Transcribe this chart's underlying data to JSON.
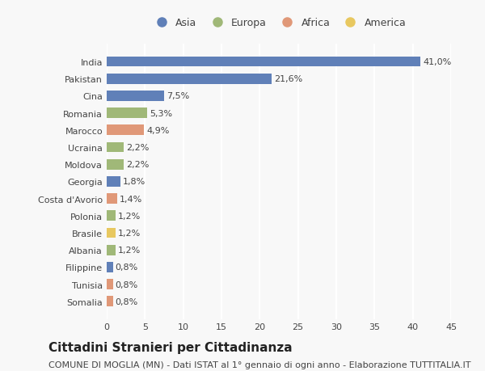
{
  "categories": [
    "India",
    "Pakistan",
    "Cina",
    "Romania",
    "Marocco",
    "Ucraina",
    "Moldova",
    "Georgia",
    "Costa d'Avorio",
    "Polonia",
    "Brasile",
    "Albania",
    "Filippine",
    "Tunisia",
    "Somalia"
  ],
  "values": [
    41.0,
    21.6,
    7.5,
    5.3,
    4.9,
    2.2,
    2.2,
    1.8,
    1.4,
    1.2,
    1.2,
    1.2,
    0.8,
    0.8,
    0.8
  ],
  "labels": [
    "41,0%",
    "21,6%",
    "7,5%",
    "5,3%",
    "4,9%",
    "2,2%",
    "2,2%",
    "1,8%",
    "1,4%",
    "1,2%",
    "1,2%",
    "1,2%",
    "0,8%",
    "0,8%",
    "0,8%"
  ],
  "continents": [
    "Asia",
    "Asia",
    "Asia",
    "Europa",
    "Africa",
    "Europa",
    "Europa",
    "Asia",
    "Africa",
    "Europa",
    "America",
    "Europa",
    "Asia",
    "Africa",
    "Africa"
  ],
  "continent_colors": {
    "Asia": "#6080b8",
    "Europa": "#a0b878",
    "Africa": "#e09878",
    "America": "#e8c860"
  },
  "legend_order": [
    "Asia",
    "Europa",
    "Africa",
    "America"
  ],
  "title": "Cittadini Stranieri per Cittadinanza",
  "subtitle": "COMUNE DI MOGLIA (MN) - Dati ISTAT al 1° gennaio di ogni anno - Elaborazione TUTTITALIA.IT",
  "xlim": [
    0,
    45
  ],
  "xticks": [
    0,
    5,
    10,
    15,
    20,
    25,
    30,
    35,
    40,
    45
  ],
  "background_color": "#f8f8f8",
  "grid_color": "#ffffff",
  "bar_height": 0.6,
  "title_fontsize": 11,
  "subtitle_fontsize": 8,
  "label_fontsize": 8,
  "tick_fontsize": 8,
  "legend_fontsize": 9
}
